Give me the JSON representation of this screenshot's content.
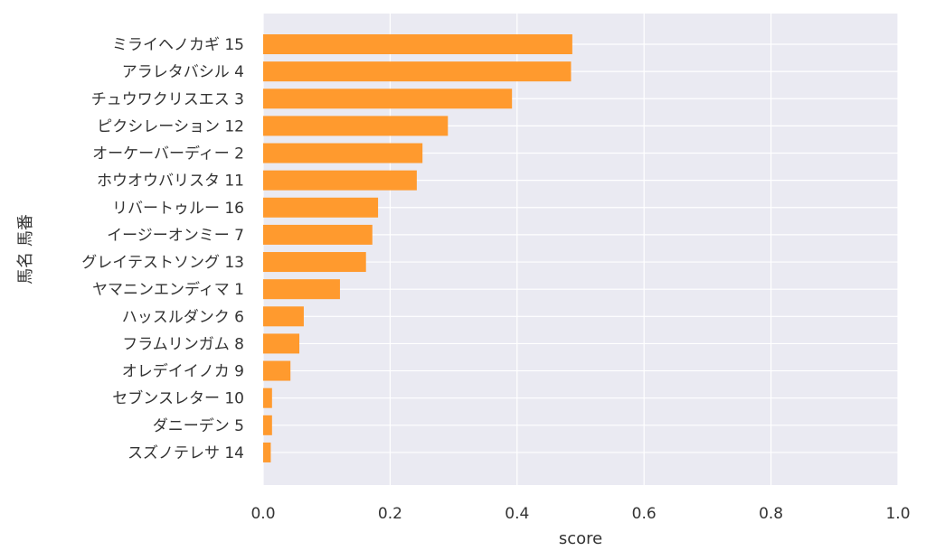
{
  "chart_data": {
    "type": "bar",
    "orientation": "horizontal",
    "xlabel": "score",
    "ylabel": "馬名 馬番",
    "xlim": [
      0,
      1.0
    ],
    "x_ticks": [
      "0.0",
      "0.2",
      "0.4",
      "0.6",
      "0.8",
      "1.0"
    ],
    "grid": true,
    "colors": {
      "bar": "#ff9a2e",
      "plot_background": "#eaeaf2",
      "grid": "#ffffff"
    },
    "categories": [
      "ミライヘノカギ 15",
      "アラレタバシル 4",
      "チュウワクリスエス 3",
      "ピクシレーション 12",
      "オーケーバーディー 2",
      "ホウオウバリスタ 11",
      "リバートゥルー 16",
      "イージーオンミー 7",
      "グレイテストソング 13",
      "ヤマニンエンディマ 1",
      "ハッスルダンク 6",
      "フラムリンガム 8",
      "オレデイイノカ 9",
      "セブンスレター 10",
      "ダニーデン 5",
      "スズノテレサ 14"
    ],
    "values": [
      0.487,
      0.485,
      0.392,
      0.291,
      0.251,
      0.242,
      0.181,
      0.172,
      0.162,
      0.121,
      0.064,
      0.057,
      0.043,
      0.014,
      0.014,
      0.012
    ]
  }
}
